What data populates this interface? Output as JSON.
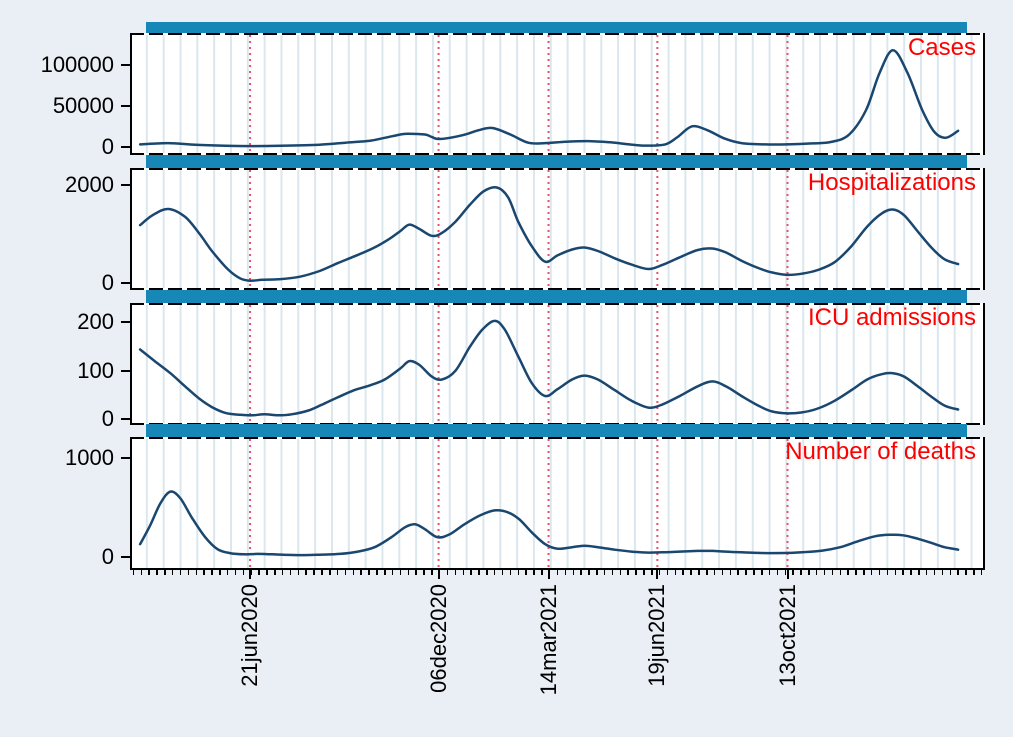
{
  "figure": {
    "background_color": "#e9eff4",
    "panel_background_color": "#ffffff",
    "gridline_color": "#dbe7ee",
    "series_line_color": "#1a476f",
    "top_bar_color": "#1787b8",
    "reference_line_color": "#ee4f64",
    "panel_title_color": "#fe0000",
    "axis_color": "#000000"
  },
  "chart_data": {
    "type": "line",
    "x_axis": {
      "range": [
        "2020-03-06",
        "2022-04-07"
      ],
      "tick_labels": [
        {
          "label": "21jun2020",
          "date": "2020-06-21"
        },
        {
          "label": "06dec2020",
          "date": "2020-12-06"
        },
        {
          "label": "14mar2021",
          "date": "2021-03-14"
        },
        {
          "label": "19jun2021",
          "date": "2021-06-19"
        },
        {
          "label": "13oct2021",
          "date": "2021-10-13"
        }
      ],
      "reference_lines": [
        "2020-06-21",
        "2020-12-06",
        "2021-03-14",
        "2021-06-19",
        "2021-10-13"
      ],
      "minor_tick_interval_days": 7,
      "minor_tick_start": "2020-03-09",
      "gridline_interval_days": 15,
      "gridline_start": "2020-03-21",
      "grid": "vertical-only"
    },
    "top_bars": {
      "date_start": "2020-03-20",
      "date_end": "2022-03-22"
    },
    "panels": [
      {
        "title": "Cases",
        "yticks": [
          0,
          50000,
          100000
        ],
        "ylim": [
          -10000,
          139000
        ],
        "points": [
          [
            "2020-03-15",
            3000
          ],
          [
            "2020-04-09",
            4500
          ],
          [
            "2020-05-03",
            2500
          ],
          [
            "2020-05-30",
            1300
          ],
          [
            "2020-06-21",
            900
          ],
          [
            "2020-07-18",
            1300
          ],
          [
            "2020-08-22",
            2600
          ],
          [
            "2020-09-14",
            5000
          ],
          [
            "2020-10-06",
            7500
          ],
          [
            "2020-10-19",
            11000
          ],
          [
            "2020-11-02",
            15000
          ],
          [
            "2020-11-09",
            16000
          ],
          [
            "2020-11-24",
            15000
          ],
          [
            "2020-11-30",
            12000
          ],
          [
            "2020-12-07",
            9500
          ],
          [
            "2020-12-27",
            14000
          ],
          [
            "2021-01-10",
            20000
          ],
          [
            "2021-01-23",
            23000
          ],
          [
            "2021-02-08",
            15000
          ],
          [
            "2021-02-24",
            5000
          ],
          [
            "2021-03-11",
            4500
          ],
          [
            "2021-03-29",
            6200
          ],
          [
            "2021-04-18",
            7000
          ],
          [
            "2021-05-08",
            5500
          ],
          [
            "2021-05-25",
            3000
          ],
          [
            "2021-06-08",
            1500
          ],
          [
            "2021-06-26",
            3000
          ],
          [
            "2021-07-07",
            12000
          ],
          [
            "2021-07-20",
            25000
          ],
          [
            "2021-08-03",
            20000
          ],
          [
            "2021-08-18",
            10000
          ],
          [
            "2021-09-02",
            4500
          ],
          [
            "2021-09-23",
            3000
          ],
          [
            "2021-10-13",
            3000
          ],
          [
            "2021-11-04",
            4200
          ],
          [
            "2021-11-21",
            6000
          ],
          [
            "2021-12-07",
            15000
          ],
          [
            "2021-12-22",
            45000
          ],
          [
            "2022-01-03",
            90000
          ],
          [
            "2022-01-15",
            118000
          ],
          [
            "2022-01-28",
            90000
          ],
          [
            "2022-02-10",
            45000
          ],
          [
            "2022-02-21",
            18000
          ],
          [
            "2022-03-03",
            11000
          ],
          [
            "2022-03-14",
            19500
          ]
        ]
      },
      {
        "title": "Hospitalizations",
        "yticks": [
          0,
          2000
        ],
        "ylim": [
          -150,
          2350
        ],
        "points": [
          [
            "2020-03-15",
            1180
          ],
          [
            "2020-03-26",
            1380
          ],
          [
            "2020-04-09",
            1510
          ],
          [
            "2020-04-24",
            1350
          ],
          [
            "2020-05-07",
            1000
          ],
          [
            "2020-05-18",
            650
          ],
          [
            "2020-06-01",
            280
          ],
          [
            "2020-06-12",
            90
          ],
          [
            "2020-06-21",
            40
          ],
          [
            "2020-07-02",
            60
          ],
          [
            "2020-07-16",
            70
          ],
          [
            "2020-08-04",
            120
          ],
          [
            "2020-08-22",
            240
          ],
          [
            "2020-09-07",
            400
          ],
          [
            "2020-09-22",
            540
          ],
          [
            "2020-10-08",
            700
          ],
          [
            "2020-10-22",
            880
          ],
          [
            "2020-11-02",
            1060
          ],
          [
            "2020-11-10",
            1190
          ],
          [
            "2020-11-19",
            1100
          ],
          [
            "2020-11-30",
            960
          ],
          [
            "2020-12-09",
            1020
          ],
          [
            "2020-12-21",
            1250
          ],
          [
            "2021-01-03",
            1600
          ],
          [
            "2021-01-15",
            1870
          ],
          [
            "2021-01-27",
            1950
          ],
          [
            "2021-02-06",
            1750
          ],
          [
            "2021-02-15",
            1250
          ],
          [
            "2021-02-27",
            750
          ],
          [
            "2021-03-11",
            430
          ],
          [
            "2021-03-22",
            560
          ],
          [
            "2021-04-04",
            680
          ],
          [
            "2021-04-15",
            720
          ],
          [
            "2021-04-27",
            650
          ],
          [
            "2021-05-12",
            500
          ],
          [
            "2021-05-27",
            370
          ],
          [
            "2021-06-11",
            280
          ],
          [
            "2021-06-23",
            360
          ],
          [
            "2021-07-09",
            520
          ],
          [
            "2021-07-25",
            670
          ],
          [
            "2021-08-07",
            700
          ],
          [
            "2021-08-19",
            620
          ],
          [
            "2021-09-02",
            450
          ],
          [
            "2021-09-17",
            300
          ],
          [
            "2021-09-29",
            210
          ],
          [
            "2021-10-13",
            160
          ],
          [
            "2021-10-26",
            185
          ],
          [
            "2021-11-09",
            260
          ],
          [
            "2021-11-24",
            420
          ],
          [
            "2021-12-09",
            750
          ],
          [
            "2021-12-23",
            1150
          ],
          [
            "2022-01-05",
            1420
          ],
          [
            "2022-01-15",
            1500
          ],
          [
            "2022-01-25",
            1380
          ],
          [
            "2022-02-06",
            1050
          ],
          [
            "2022-02-19",
            700
          ],
          [
            "2022-03-02",
            480
          ],
          [
            "2022-03-14",
            380
          ]
        ]
      },
      {
        "title": "ICU admissions",
        "yticks": [
          0,
          100,
          200
        ],
        "ylim": [
          -12,
          240
        ],
        "points": [
          [
            "2020-03-15",
            144
          ],
          [
            "2020-03-28",
            120
          ],
          [
            "2020-04-11",
            95
          ],
          [
            "2020-04-24",
            68
          ],
          [
            "2020-05-07",
            42
          ],
          [
            "2020-05-18",
            25
          ],
          [
            "2020-05-30",
            13
          ],
          [
            "2020-06-12",
            9
          ],
          [
            "2020-06-23",
            8
          ],
          [
            "2020-07-04",
            10
          ],
          [
            "2020-07-16",
            8
          ],
          [
            "2020-07-28",
            10
          ],
          [
            "2020-08-12",
            18
          ],
          [
            "2020-08-24",
            30
          ],
          [
            "2020-09-07",
            45
          ],
          [
            "2020-09-22",
            60
          ],
          [
            "2020-10-06",
            70
          ],
          [
            "2020-10-19",
            82
          ],
          [
            "2020-11-02",
            105
          ],
          [
            "2020-11-10",
            120
          ],
          [
            "2020-11-19",
            112
          ],
          [
            "2020-11-30",
            88
          ],
          [
            "2020-12-09",
            82
          ],
          [
            "2020-12-21",
            100
          ],
          [
            "2021-01-03",
            150
          ],
          [
            "2021-01-14",
            185
          ],
          [
            "2021-01-25",
            203
          ],
          [
            "2021-02-03",
            185
          ],
          [
            "2021-02-15",
            130
          ],
          [
            "2021-02-27",
            75
          ],
          [
            "2021-03-11",
            48
          ],
          [
            "2021-03-22",
            62
          ],
          [
            "2021-04-04",
            82
          ],
          [
            "2021-04-15",
            90
          ],
          [
            "2021-04-27",
            82
          ],
          [
            "2021-05-12",
            60
          ],
          [
            "2021-05-27",
            38
          ],
          [
            "2021-06-11",
            24
          ],
          [
            "2021-06-23",
            30
          ],
          [
            "2021-07-09",
            48
          ],
          [
            "2021-07-25",
            68
          ],
          [
            "2021-08-07",
            78
          ],
          [
            "2021-08-19",
            68
          ],
          [
            "2021-09-02",
            48
          ],
          [
            "2021-09-17",
            28
          ],
          [
            "2021-09-29",
            16
          ],
          [
            "2021-10-13",
            12
          ],
          [
            "2021-10-26",
            14
          ],
          [
            "2021-11-09",
            22
          ],
          [
            "2021-11-24",
            38
          ],
          [
            "2021-12-09",
            60
          ],
          [
            "2021-12-23",
            82
          ],
          [
            "2022-01-05",
            93
          ],
          [
            "2022-01-15",
            95
          ],
          [
            "2022-01-25",
            88
          ],
          [
            "2022-02-06",
            68
          ],
          [
            "2022-02-19",
            45
          ],
          [
            "2022-03-02",
            28
          ],
          [
            "2022-03-14",
            20
          ]
        ]
      },
      {
        "title": "Number of deaths",
        "yticks": [
          0,
          1000
        ],
        "ylim": [
          -130,
          1210
        ],
        "points": [
          [
            "2020-03-15",
            130
          ],
          [
            "2020-03-24",
            320
          ],
          [
            "2020-04-02",
            540
          ],
          [
            "2020-04-11",
            660
          ],
          [
            "2020-04-20",
            590
          ],
          [
            "2020-04-30",
            400
          ],
          [
            "2020-05-12",
            200
          ],
          [
            "2020-05-23",
            80
          ],
          [
            "2020-06-03",
            40
          ],
          [
            "2020-06-16",
            28
          ],
          [
            "2020-06-28",
            32
          ],
          [
            "2020-07-11",
            28
          ],
          [
            "2020-07-25",
            22
          ],
          [
            "2020-08-09",
            20
          ],
          [
            "2020-08-24",
            25
          ],
          [
            "2020-09-09",
            32
          ],
          [
            "2020-09-25",
            55
          ],
          [
            "2020-10-10",
            100
          ],
          [
            "2020-10-25",
            200
          ],
          [
            "2020-11-06",
            300
          ],
          [
            "2020-11-15",
            330
          ],
          [
            "2020-11-24",
            280
          ],
          [
            "2020-12-05",
            200
          ],
          [
            "2020-12-16",
            230
          ],
          [
            "2020-12-29",
            330
          ],
          [
            "2021-01-12",
            420
          ],
          [
            "2021-01-25",
            470
          ],
          [
            "2021-02-06",
            450
          ],
          [
            "2021-02-16",
            380
          ],
          [
            "2021-02-27",
            250
          ],
          [
            "2021-03-11",
            130
          ],
          [
            "2021-03-22",
            85
          ],
          [
            "2021-04-04",
            100
          ],
          [
            "2021-04-15",
            115
          ],
          [
            "2021-04-27",
            100
          ],
          [
            "2021-05-12",
            75
          ],
          [
            "2021-05-27",
            55
          ],
          [
            "2021-06-11",
            45
          ],
          [
            "2021-06-23",
            48
          ],
          [
            "2021-07-09",
            55
          ],
          [
            "2021-07-25",
            62
          ],
          [
            "2021-08-07",
            62
          ],
          [
            "2021-08-19",
            55
          ],
          [
            "2021-09-02",
            48
          ],
          [
            "2021-09-17",
            42
          ],
          [
            "2021-09-29",
            40
          ],
          [
            "2021-10-13",
            42
          ],
          [
            "2021-10-28",
            50
          ],
          [
            "2021-11-13",
            65
          ],
          [
            "2021-11-29",
            100
          ],
          [
            "2021-12-15",
            160
          ],
          [
            "2021-12-30",
            210
          ],
          [
            "2022-01-12",
            225
          ],
          [
            "2022-01-24",
            220
          ],
          [
            "2022-02-06",
            185
          ],
          [
            "2022-02-19",
            140
          ],
          [
            "2022-03-02",
            100
          ],
          [
            "2022-03-14",
            75
          ]
        ]
      }
    ]
  }
}
